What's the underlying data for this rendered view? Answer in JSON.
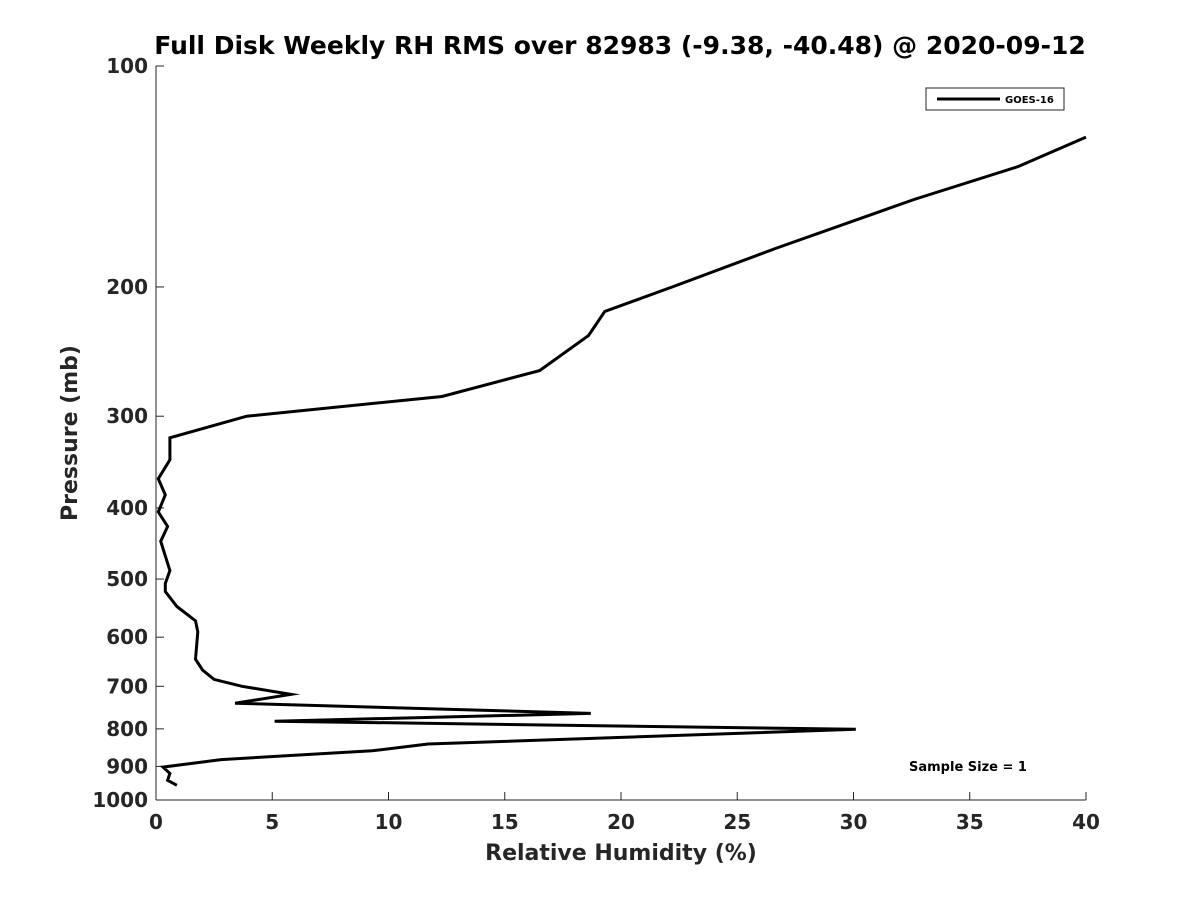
{
  "chart_data": {
    "type": "line",
    "title": "Full Disk Weekly RH RMS over 82983 (-9.38, -40.48) @ 2020-09-12",
    "xlabel": "Relative Humidity (%)",
    "ylabel": "Pressure (mb)",
    "xlim": [
      0,
      40
    ],
    "ylim": [
      100,
      1000
    ],
    "yscale": "log",
    "yaxis_reversed": true,
    "xticks": [
      0,
      5,
      10,
      15,
      20,
      25,
      30,
      35,
      40
    ],
    "xtick_labels": [
      "0",
      "5",
      "10",
      "15",
      "20",
      "25",
      "30",
      "35",
      "40"
    ],
    "yticks": [
      100,
      200,
      300,
      400,
      500,
      600,
      700,
      800,
      900,
      1000
    ],
    "ytick_labels": [
      "100",
      "200",
      "300",
      "400",
      "500",
      "600",
      "700",
      "800",
      "900",
      "1000"
    ],
    "grid": false,
    "legend_position": "top-right",
    "annotation": "Sample Size = 1",
    "series": [
      {
        "name": "GOES-16",
        "color": "#000000",
        "points": [
          [
            40.0,
            125
          ],
          [
            37.1,
            137
          ],
          [
            32.6,
            152
          ],
          [
            26.7,
            177
          ],
          [
            22.2,
            200
          ],
          [
            19.3,
            216
          ],
          [
            18.6,
            233
          ],
          [
            16.5,
            260
          ],
          [
            12.3,
            282
          ],
          [
            3.9,
            300
          ],
          [
            0.6,
            321
          ],
          [
            0.6,
            344
          ],
          [
            0.1,
            365
          ],
          [
            0.4,
            384
          ],
          [
            0.1,
            405
          ],
          [
            0.5,
            424
          ],
          [
            0.2,
            444
          ],
          [
            0.4,
            465
          ],
          [
            0.6,
            487
          ],
          [
            0.4,
            507
          ],
          [
            0.4,
            520
          ],
          [
            0.9,
            545
          ],
          [
            1.7,
            570
          ],
          [
            1.8,
            590
          ],
          [
            1.7,
            643
          ],
          [
            2.0,
            665
          ],
          [
            2.5,
            685
          ],
          [
            3.7,
            700
          ],
          [
            5.8,
            718
          ],
          [
            3.4,
            738
          ],
          [
            18.7,
            762
          ],
          [
            5.1,
            781
          ],
          [
            30.1,
            801
          ],
          [
            11.7,
            839
          ],
          [
            9.3,
            857
          ],
          [
            2.8,
            881
          ],
          [
            0.3,
            902
          ],
          [
            0.6,
            920
          ],
          [
            0.5,
            940
          ],
          [
            0.9,
            955
          ]
        ]
      }
    ]
  }
}
